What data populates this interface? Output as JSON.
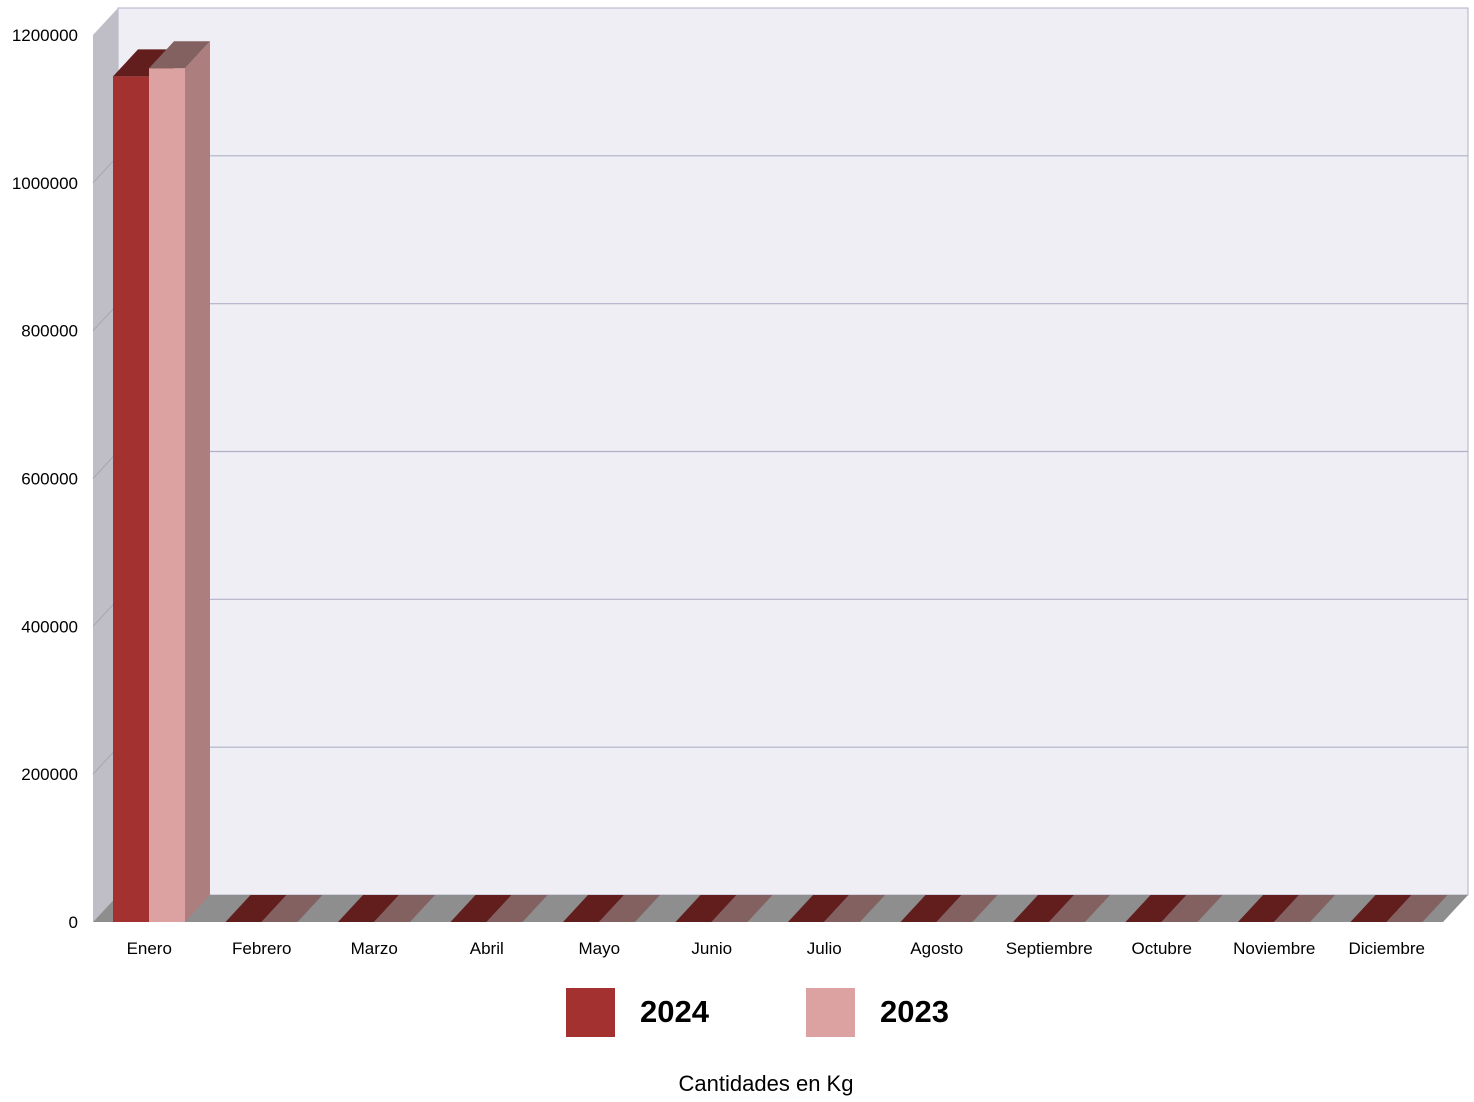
{
  "chart_data": {
    "type": "bar",
    "style": "3d-clustered",
    "categories": [
      "Enero",
      "Febrero",
      "Marzo",
      "Abril",
      "Mayo",
      "Junio",
      "Julio",
      "Agosto",
      "Septiembre",
      "Octubre",
      "Noviembre",
      "Diciembre"
    ],
    "series": [
      {
        "name": "2024",
        "color": "#a33130",
        "values": [
          1144000,
          0,
          0,
          0,
          0,
          0,
          0,
          0,
          0,
          0,
          0,
          0
        ]
      },
      {
        "name": "2023",
        "color": "#dca2a2",
        "values": [
          1155000,
          0,
          0,
          0,
          0,
          0,
          0,
          0,
          0,
          0,
          0,
          0
        ]
      }
    ],
    "ylim": [
      0,
      1200000
    ],
    "yticks": [
      "0",
      "200000",
      "400000",
      "600000",
      "800000",
      "1000000",
      "1200000"
    ],
    "grid": true,
    "legend_position": "bottom-center",
    "caption": "Cantidades en Kg"
  }
}
